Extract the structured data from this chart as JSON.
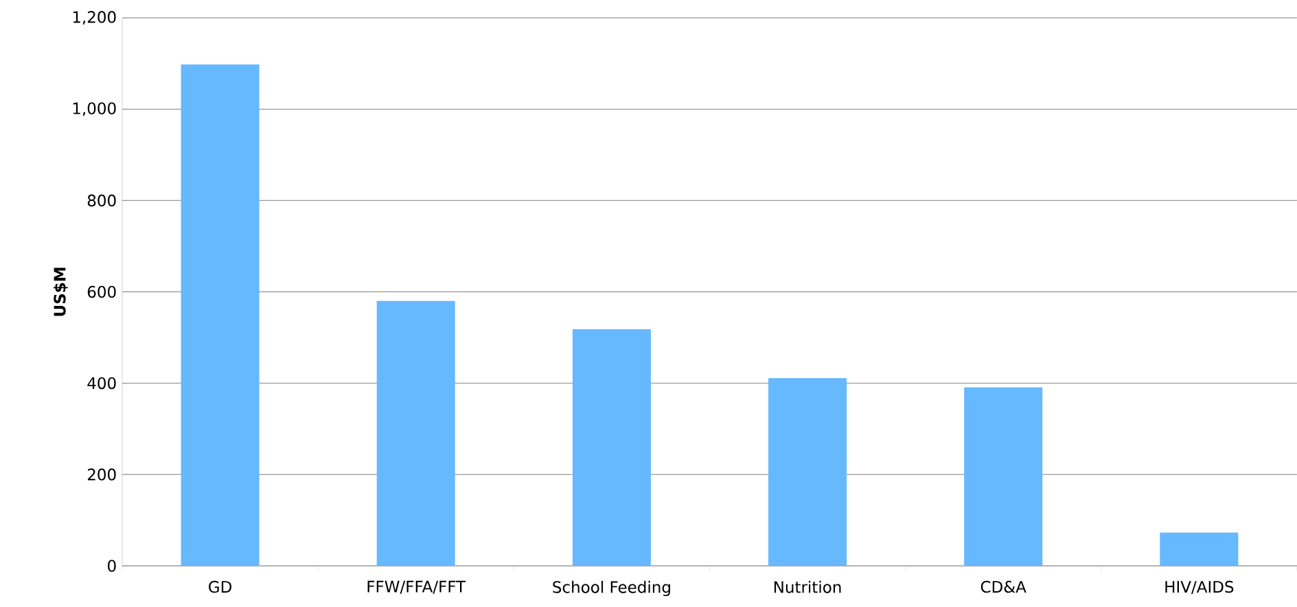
{
  "chart_data": {
    "type": "bar",
    "ylabel": "US$M",
    "categories": [
      "GD",
      "FFW/FFA/FFT",
      "School Feeding",
      "Nutrition",
      "CD&A",
      "HIV/AIDS"
    ],
    "values": [
      1098,
      580,
      518,
      411,
      391,
      73
    ],
    "color": "#66b8ff",
    "ylim": [
      0,
      1200
    ],
    "yticks": [
      {
        "value": 0,
        "label": "0"
      },
      {
        "value": 200,
        "label": "200"
      },
      {
        "value": 400,
        "label": "400"
      },
      {
        "value": 600,
        "label": "600"
      },
      {
        "value": 800,
        "label": "800"
      },
      {
        "value": 1000,
        "label": "1,000"
      },
      {
        "value": 1200,
        "label": "1,200"
      }
    ],
    "grid": "y"
  }
}
